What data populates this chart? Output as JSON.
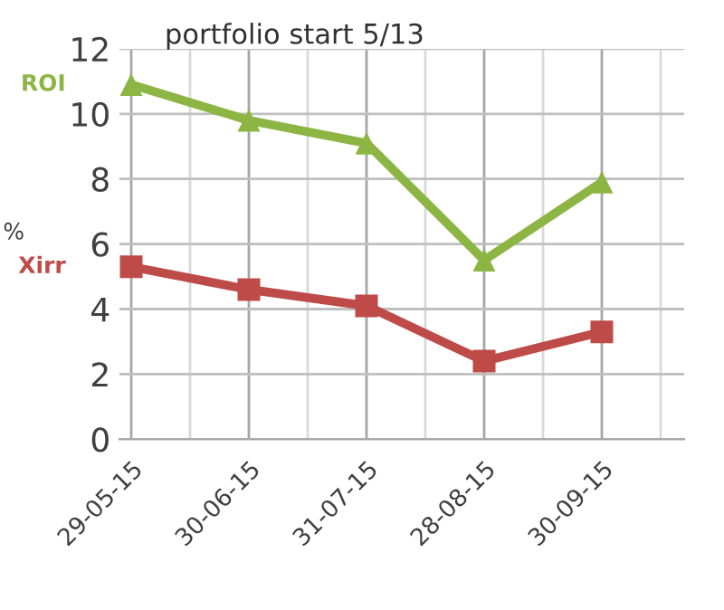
{
  "chart_data": {
    "type": "line",
    "title": "portfolio start 5/13",
    "ylabel": "%",
    "categories": [
      "29-05-15",
      "30-06-15",
      "31-07-15",
      "28-08-15",
      "30-09-15"
    ],
    "series": [
      {
        "name": "ROI",
        "color": "#8db544",
        "marker": "triangle",
        "values": [
          10.9,
          9.8,
          9.1,
          5.5,
          7.9
        ]
      },
      {
        "name": "Xirr",
        "color": "#be4b48",
        "marker": "square",
        "values": [
          5.3,
          4.6,
          4.1,
          2.4,
          3.3
        ]
      }
    ],
    "ylim": [
      0,
      12
    ],
    "yticks": [
      0,
      2,
      4,
      6,
      8,
      10,
      12
    ],
    "grid": true,
    "line_style": "solid"
  }
}
